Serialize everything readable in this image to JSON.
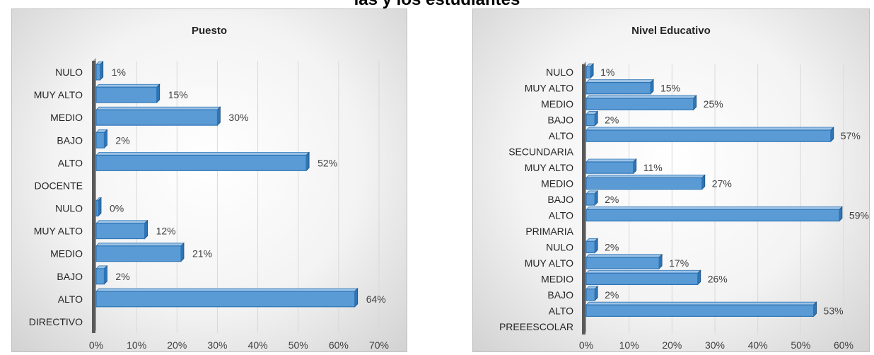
{
  "heading": "las y los estudiantes",
  "chart_data": [
    {
      "type": "bar",
      "orientation": "horizontal",
      "title": "Puesto",
      "xlim": [
        0,
        70
      ],
      "x_ticks": [
        "0%",
        "10%",
        "20%",
        "30%",
        "40%",
        "50%",
        "60%",
        "70%"
      ],
      "grid": true,
      "bar_color": "#5b9bd5",
      "categories": [
        "NULO",
        "MUY ALTO",
        "MEDIO",
        "BAJO",
        "ALTO",
        "DOCENTE",
        "NULO",
        "MUY ALTO",
        "MEDIO",
        "BAJO",
        "ALTO",
        "DIRECTIVO"
      ],
      "values": [
        1,
        15,
        30,
        2,
        52,
        null,
        0,
        12,
        21,
        2,
        64,
        null
      ],
      "value_labels": [
        "1%",
        "15%",
        "30%",
        "2%",
        "52%",
        "",
        "0%",
        "12%",
        "21%",
        "2%",
        "64%",
        ""
      ]
    },
    {
      "type": "bar",
      "orientation": "horizontal",
      "title": "Nivel Educativo",
      "xlim": [
        0,
        60
      ],
      "x_ticks": [
        "0%",
        "10%",
        "20%",
        "30%",
        "40%",
        "50%",
        "60%"
      ],
      "grid": true,
      "bar_color": "#5b9bd5",
      "categories": [
        "NULO",
        "MUY ALTO",
        "MEDIO",
        "BAJO",
        "ALTO",
        "SECUNDARIA",
        "MUY ALTO",
        "MEDIO",
        "BAJO",
        "ALTO",
        "PRIMARIA",
        "NULO",
        "MUY ALTO",
        "MEDIO",
        "BAJO",
        "ALTO",
        "PREEESCOLAR"
      ],
      "values": [
        1,
        15,
        25,
        2,
        57,
        null,
        11,
        27,
        2,
        59,
        null,
        2,
        17,
        26,
        2,
        53,
        null
      ],
      "value_labels": [
        "1%",
        "15%",
        "25%",
        "2%",
        "57%",
        "",
        "11%",
        "27%",
        "2%",
        "59%",
        "",
        "2%",
        "17%",
        "26%",
        "2%",
        "53%",
        ""
      ]
    }
  ]
}
